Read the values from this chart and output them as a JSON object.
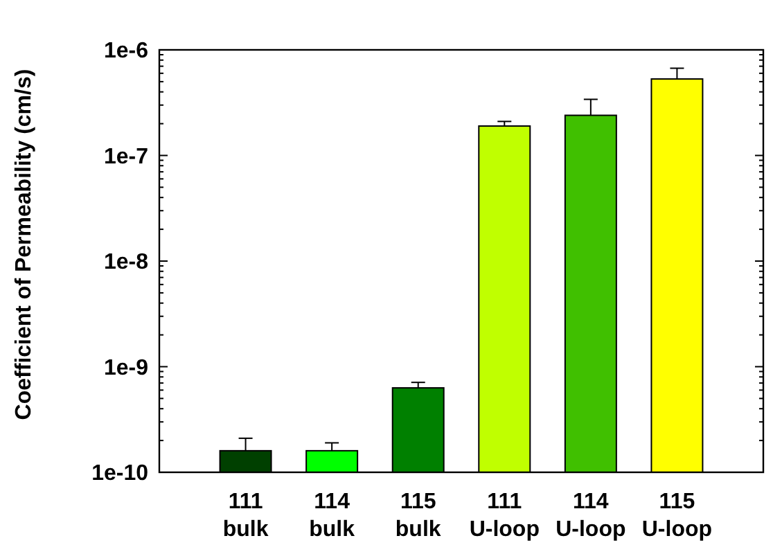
{
  "chart_data": {
    "type": "bar",
    "ylabel": "Coefficient of Permeability (cm/s)",
    "categories": [
      "111\nbulk",
      "114\nbulk",
      "115\nbulk",
      "111\nU-loop",
      "114\nU-loop",
      "115\nU-loop"
    ],
    "values": [
      1.6e-10,
      1.6e-10,
      6.3e-10,
      1.9e-07,
      2.4e-07,
      5.3e-07
    ],
    "errors": [
      [
        1.6e-10,
        2.1e-10
      ],
      [
        1.6e-10,
        1.9e-10
      ],
      [
        6.3e-10,
        7.1e-10
      ],
      [
        1.9e-07,
        2.1e-07
      ],
      [
        2.4e-07,
        3.4e-07
      ],
      [
        5.3e-07,
        6.7e-07
      ]
    ],
    "colors": [
      "#004000",
      "#00ff00",
      "#008000",
      "#c0ff00",
      "#40c000",
      "#ffff00"
    ],
    "log": true,
    "ylim": [
      1e-10,
      1e-06
    ],
    "yticks": [
      {
        "value": 1e-10,
        "label": "1e-10"
      },
      {
        "value": 2e-10,
        "label": null
      },
      {
        "value": 3e-10,
        "label": null
      },
      {
        "value": 4e-10,
        "label": null
      },
      {
        "value": 5e-10,
        "label": null
      },
      {
        "value": 6e-10,
        "label": null
      },
      {
        "value": 7e-10,
        "label": null
      },
      {
        "value": 8e-10,
        "label": null
      },
      {
        "value": 9e-10,
        "label": null
      },
      {
        "value": 1e-09,
        "label": "1e-9"
      },
      {
        "value": 2e-09,
        "label": null
      },
      {
        "value": 3e-09,
        "label": null
      },
      {
        "value": 4e-09,
        "label": null
      },
      {
        "value": 5e-09,
        "label": null
      },
      {
        "value": 6e-09,
        "label": null
      },
      {
        "value": 7e-09,
        "label": null
      },
      {
        "value": 8e-09,
        "label": null
      },
      {
        "value": 9e-09,
        "label": null
      },
      {
        "value": 1e-08,
        "label": "1e-8"
      },
      {
        "value": 2e-08,
        "label": null
      },
      {
        "value": 3e-08,
        "label": null
      },
      {
        "value": 4e-08,
        "label": null
      },
      {
        "value": 5e-08,
        "label": null
      },
      {
        "value": 6e-08,
        "label": null
      },
      {
        "value": 7e-08,
        "label": null
      },
      {
        "value": 8e-08,
        "label": null
      },
      {
        "value": 9e-08,
        "label": null
      },
      {
        "value": 1e-07,
        "label": "1e-7"
      },
      {
        "value": 2e-07,
        "label": null
      },
      {
        "value": 3e-07,
        "label": null
      },
      {
        "value": 4e-07,
        "label": null
      },
      {
        "value": 5e-07,
        "label": null
      },
      {
        "value": 6e-07,
        "label": null
      },
      {
        "value": 7e-07,
        "label": null
      },
      {
        "value": 8e-07,
        "label": null
      },
      {
        "value": 9e-07,
        "label": null
      },
      {
        "value": 1e-06,
        "label": "1e-6"
      }
    ],
    "grid": false
  }
}
